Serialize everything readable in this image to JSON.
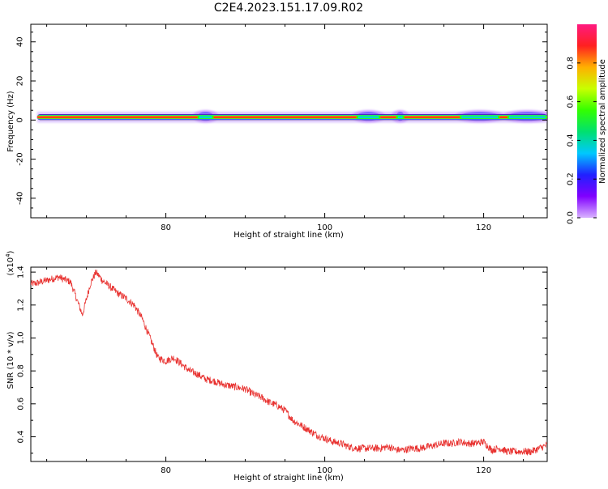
{
  "title": "C2E4.2023.151.17.09.R02",
  "colors": {
    "signal_line": "#e8312f",
    "axis": "#000000",
    "background": "#ffffff"
  },
  "chart_data": [
    {
      "type": "heatmap",
      "name": "spectrogram",
      "xlabel": "Height of straight line (km)",
      "ylabel": "Frequency (Hz)",
      "xlim": [
        63,
        128
      ],
      "ylim": [
        -50,
        49
      ],
      "xticks": [
        80,
        100,
        120
      ],
      "yticks": [
        40,
        20,
        0,
        -20,
        -40
      ],
      "colorbar": {
        "label": "Normalized spectral amplitude",
        "range": [
          0.0,
          1.0
        ],
        "ticks": [
          0.0,
          0.2,
          0.4,
          0.6,
          0.8
        ],
        "colormap": [
          "#d9b3ff",
          "#8000ff",
          "#2020ff",
          "#00c8ff",
          "#00e070",
          "#33ff00",
          "#c8ff00",
          "#ffb000",
          "#ff2020",
          "#ff1a80"
        ]
      },
      "band": {
        "center_hz": 1.5,
        "half_width_hz": 1.5,
        "x_range_km": [
          63.8,
          128
        ],
        "peak_amplitude": 0.9,
        "broadening_regions_km": [
          [
            84,
            86
          ],
          [
            104,
            107
          ],
          [
            109,
            110
          ],
          [
            117,
            122
          ],
          [
            123,
            128
          ]
        ]
      }
    },
    {
      "type": "line",
      "name": "snr",
      "xlabel": "Height of straight line (km)",
      "ylabel": "SNR (10 * v/v)",
      "y_scale_label": "(x10^4)",
      "xlim": [
        63,
        128
      ],
      "ylim": [
        0.25,
        1.43
      ],
      "xticks": [
        80,
        100,
        120
      ],
      "yticks": [
        0.4,
        0.6,
        0.8,
        1.0,
        1.2,
        1.4
      ],
      "series": [
        {
          "name": "SNR",
          "x": [
            63.5,
            65,
            66.5,
            68,
            69.5,
            70.5,
            71.2,
            72,
            73,
            74,
            75,
            76,
            77,
            78,
            79,
            80,
            81,
            82,
            83,
            84,
            85,
            86,
            87,
            88,
            89,
            90,
            91,
            92,
            93,
            94,
            95,
            96,
            97,
            98,
            99,
            100,
            101,
            102,
            103,
            104,
            105,
            106,
            107,
            108,
            109,
            110,
            111,
            112,
            113,
            114,
            115,
            116,
            117,
            118,
            119,
            120,
            121,
            122,
            123,
            124,
            125,
            126,
            127,
            128
          ],
          "y": [
            1.33,
            1.35,
            1.37,
            1.34,
            1.14,
            1.33,
            1.4,
            1.35,
            1.31,
            1.27,
            1.24,
            1.2,
            1.12,
            1.0,
            0.88,
            0.86,
            0.88,
            0.84,
            0.8,
            0.78,
            0.75,
            0.74,
            0.72,
            0.71,
            0.7,
            0.69,
            0.66,
            0.64,
            0.61,
            0.59,
            0.56,
            0.5,
            0.47,
            0.44,
            0.41,
            0.39,
            0.37,
            0.36,
            0.34,
            0.33,
            0.33,
            0.33,
            0.33,
            0.34,
            0.32,
            0.32,
            0.33,
            0.33,
            0.34,
            0.35,
            0.36,
            0.36,
            0.37,
            0.36,
            0.36,
            0.37,
            0.32,
            0.33,
            0.31,
            0.31,
            0.31,
            0.31,
            0.33,
            0.35
          ]
        }
      ]
    }
  ]
}
